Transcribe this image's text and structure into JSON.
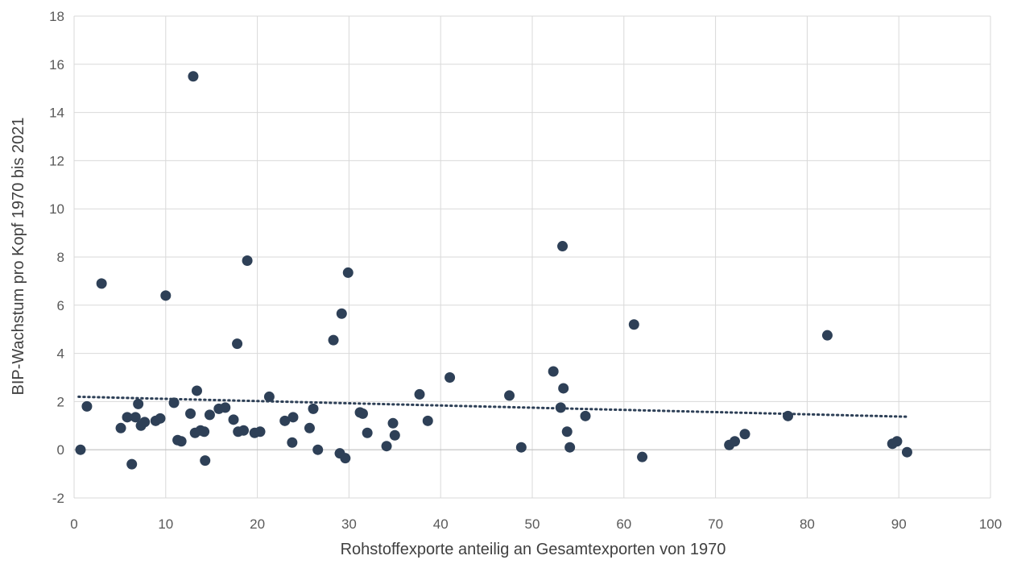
{
  "chart_data": {
    "type": "scatter",
    "title": "",
    "xlabel": "Rohstoffexporte anteilig an Gesamtexporten von 1970",
    "ylabel": "BIP-Wachstum pro Kopf 1970 bis 2021",
    "xlim": [
      0,
      100
    ],
    "ylim": [
      -2,
      18
    ],
    "x_ticks": [
      0,
      10,
      20,
      30,
      40,
      50,
      60,
      70,
      80,
      90,
      100
    ],
    "y_ticks": [
      -2,
      0,
      2,
      4,
      6,
      8,
      10,
      12,
      14,
      16,
      18
    ],
    "grid": true,
    "legend": "none",
    "marker_color": "#2e4057",
    "trendline": {
      "style": "dotted",
      "x": [
        0.5,
        91
      ],
      "y": [
        2.2,
        1.37
      ]
    },
    "points": [
      {
        "x": 0.7,
        "y": 0.0
      },
      {
        "x": 1.4,
        "y": 1.8
      },
      {
        "x": 3.0,
        "y": 6.9
      },
      {
        "x": 5.1,
        "y": 0.9
      },
      {
        "x": 5.8,
        "y": 1.35
      },
      {
        "x": 6.3,
        "y": -0.6
      },
      {
        "x": 6.7,
        "y": 1.35
      },
      {
        "x": 7.0,
        "y": 1.9
      },
      {
        "x": 7.3,
        "y": 1.0
      },
      {
        "x": 7.7,
        "y": 1.15
      },
      {
        "x": 8.9,
        "y": 1.2
      },
      {
        "x": 9.4,
        "y": 1.3
      },
      {
        "x": 10.0,
        "y": 6.4
      },
      {
        "x": 10.9,
        "y": 1.95
      },
      {
        "x": 11.3,
        "y": 0.4
      },
      {
        "x": 11.7,
        "y": 0.35
      },
      {
        "x": 12.7,
        "y": 1.5
      },
      {
        "x": 13.0,
        "y": 15.5
      },
      {
        "x": 13.2,
        "y": 0.7
      },
      {
        "x": 13.4,
        "y": 2.45
      },
      {
        "x": 13.8,
        "y": 0.8
      },
      {
        "x": 14.2,
        "y": 0.75
      },
      {
        "x": 14.3,
        "y": -0.45
      },
      {
        "x": 14.8,
        "y": 1.45
      },
      {
        "x": 15.8,
        "y": 1.7
      },
      {
        "x": 16.5,
        "y": 1.75
      },
      {
        "x": 17.4,
        "y": 1.25
      },
      {
        "x": 17.8,
        "y": 4.4
      },
      {
        "x": 17.9,
        "y": 0.75
      },
      {
        "x": 18.5,
        "y": 0.8
      },
      {
        "x": 18.9,
        "y": 7.85
      },
      {
        "x": 19.7,
        "y": 0.7
      },
      {
        "x": 20.3,
        "y": 0.75
      },
      {
        "x": 21.3,
        "y": 2.2
      },
      {
        "x": 23.0,
        "y": 1.2
      },
      {
        "x": 23.8,
        "y": 0.3
      },
      {
        "x": 23.9,
        "y": 1.35
      },
      {
        "x": 25.7,
        "y": 0.9
      },
      {
        "x": 26.1,
        "y": 1.7
      },
      {
        "x": 26.6,
        "y": 0.0
      },
      {
        "x": 28.3,
        "y": 4.55
      },
      {
        "x": 29.0,
        "y": -0.15
      },
      {
        "x": 29.2,
        "y": 5.65
      },
      {
        "x": 29.6,
        "y": -0.35
      },
      {
        "x": 29.9,
        "y": 7.35
      },
      {
        "x": 31.2,
        "y": 1.55
      },
      {
        "x": 31.5,
        "y": 1.5
      },
      {
        "x": 32.0,
        "y": 0.7
      },
      {
        "x": 34.1,
        "y": 0.15
      },
      {
        "x": 34.8,
        "y": 1.1
      },
      {
        "x": 35.0,
        "y": 0.6
      },
      {
        "x": 37.7,
        "y": 2.3
      },
      {
        "x": 38.6,
        "y": 1.2
      },
      {
        "x": 41.0,
        "y": 3.0
      },
      {
        "x": 47.5,
        "y": 2.25
      },
      {
        "x": 48.8,
        "y": 0.1
      },
      {
        "x": 52.3,
        "y": 3.25
      },
      {
        "x": 53.1,
        "y": 1.75
      },
      {
        "x": 53.3,
        "y": 8.45
      },
      {
        "x": 53.4,
        "y": 2.55
      },
      {
        "x": 53.8,
        "y": 0.75
      },
      {
        "x": 54.1,
        "y": 0.1
      },
      {
        "x": 55.8,
        "y": 1.4
      },
      {
        "x": 61.1,
        "y": 5.2
      },
      {
        "x": 62.0,
        "y": -0.3
      },
      {
        "x": 71.5,
        "y": 0.2
      },
      {
        "x": 72.1,
        "y": 0.35
      },
      {
        "x": 73.2,
        "y": 0.65
      },
      {
        "x": 77.9,
        "y": 1.4
      },
      {
        "x": 82.2,
        "y": 4.75
      },
      {
        "x": 89.3,
        "y": 0.25
      },
      {
        "x": 89.8,
        "y": 0.35
      },
      {
        "x": 90.9,
        "y": -0.1
      }
    ]
  }
}
